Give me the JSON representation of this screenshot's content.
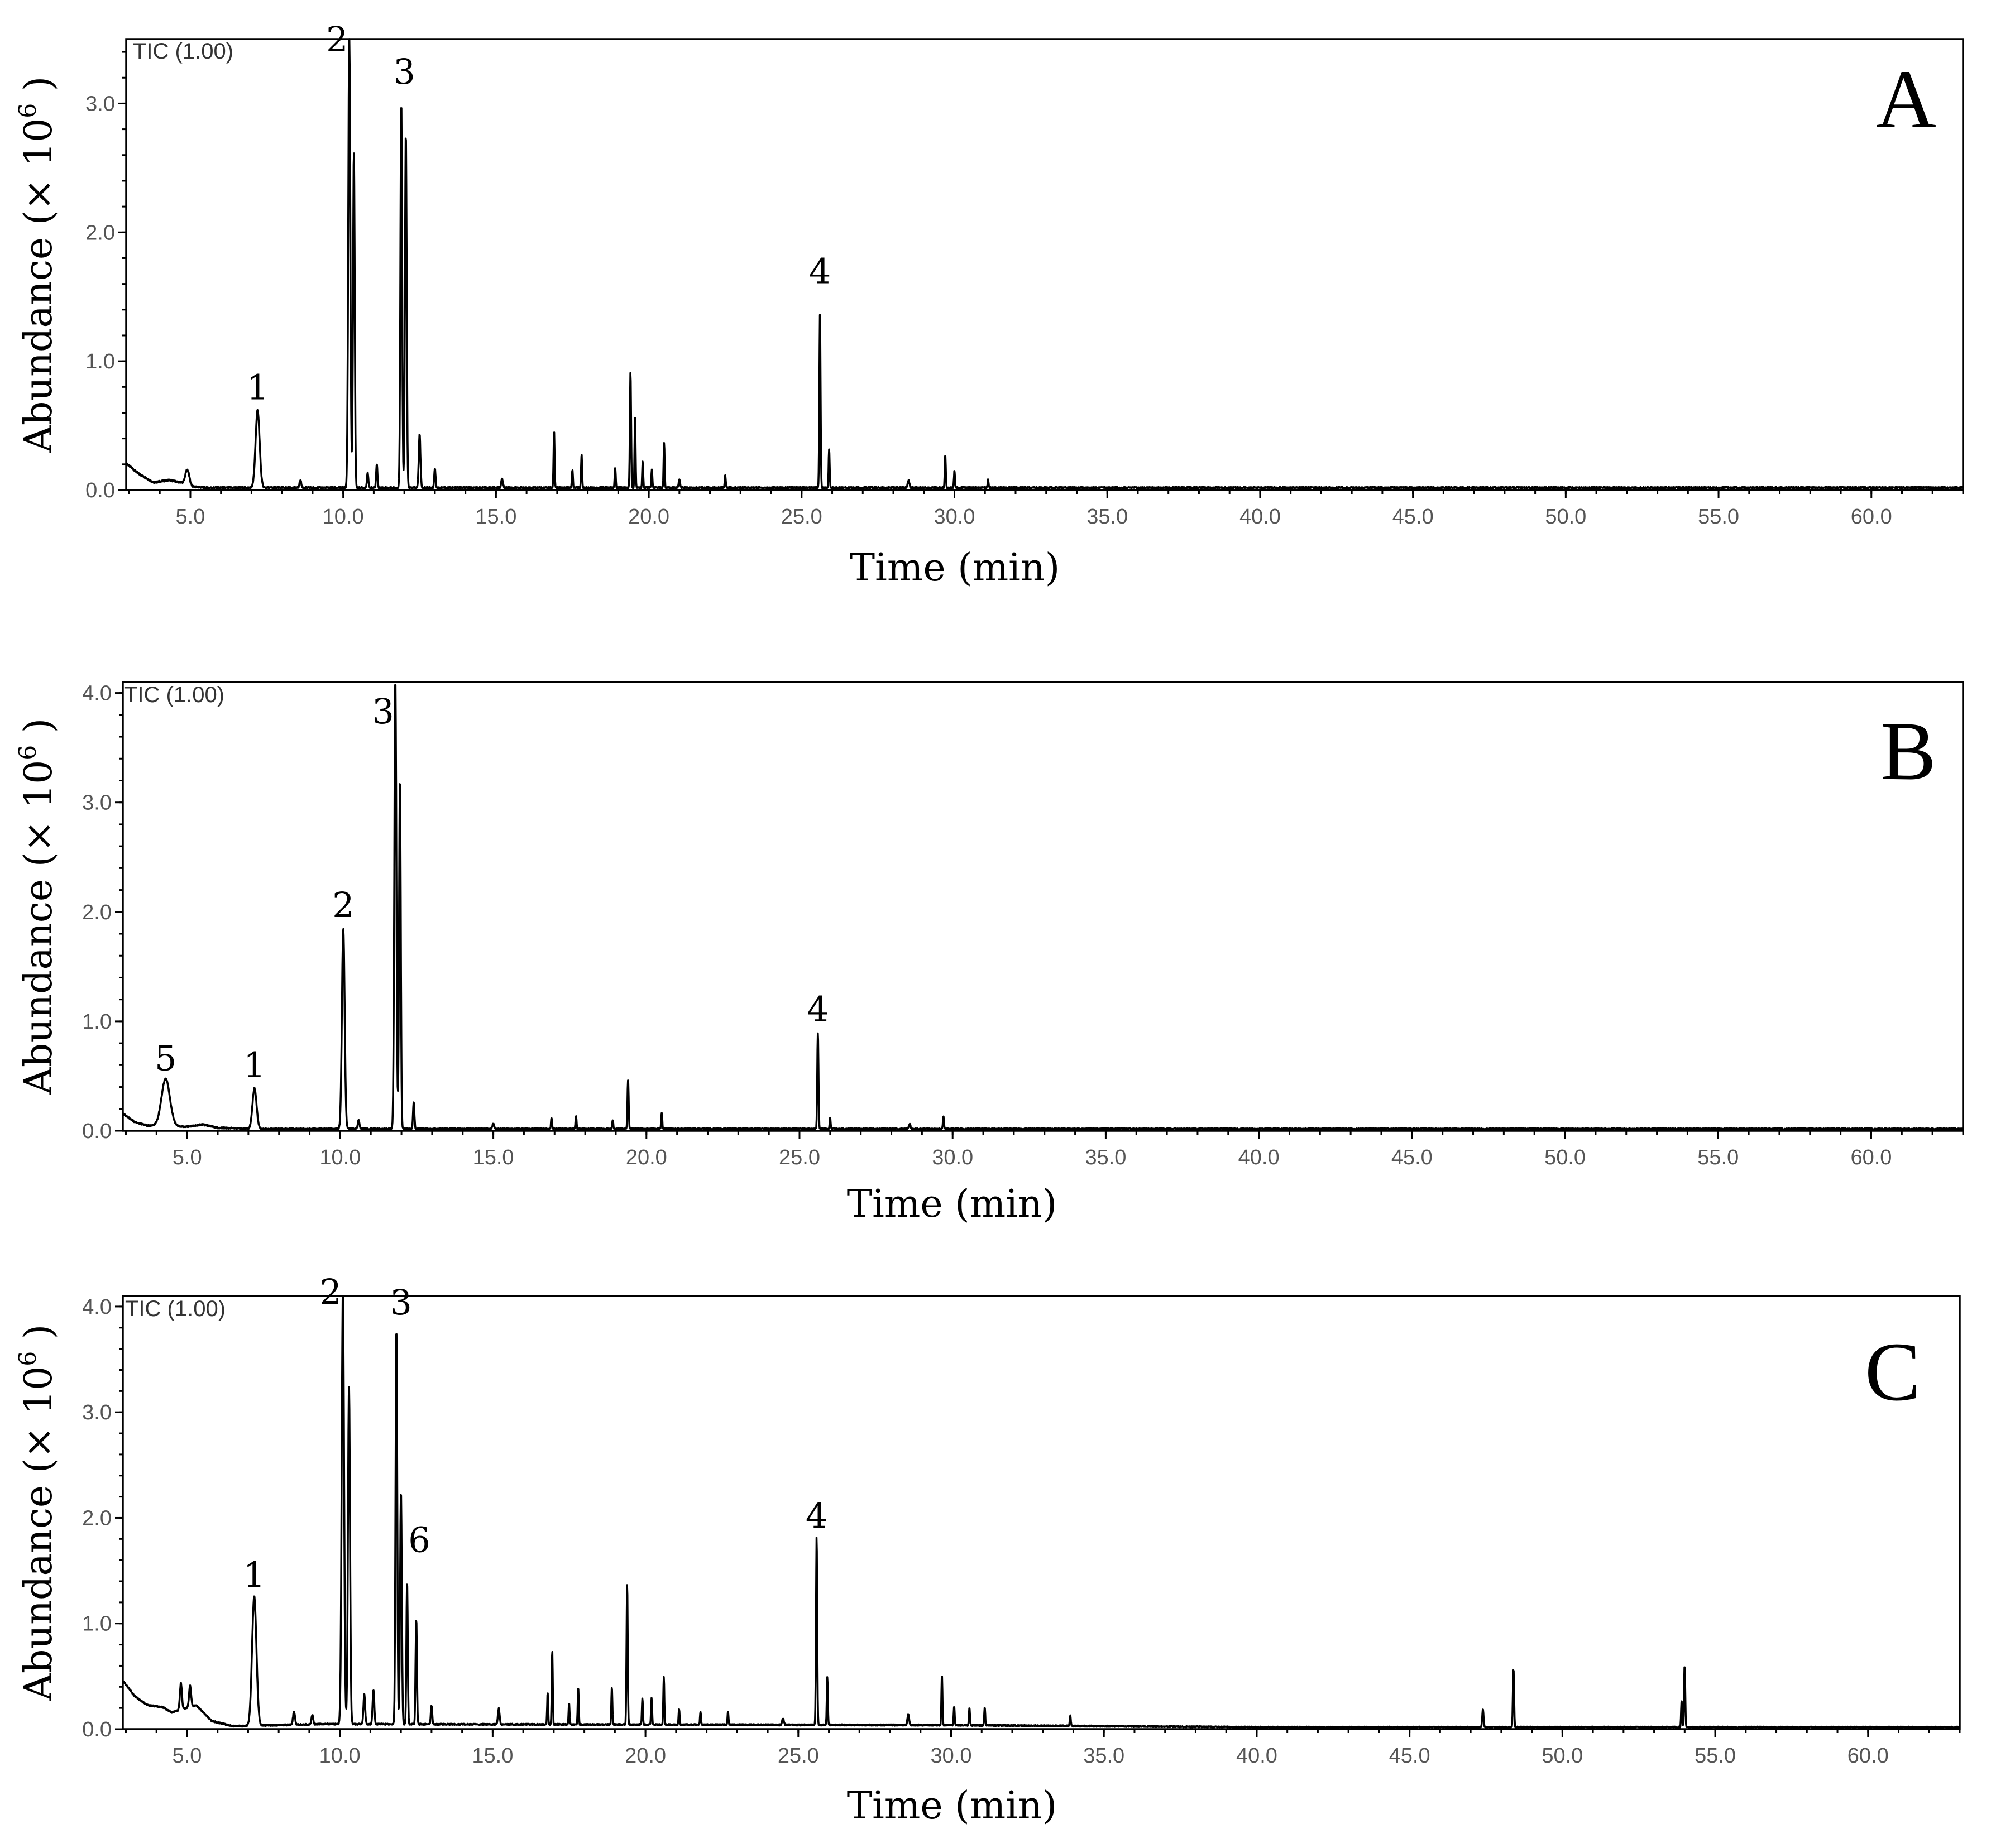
{
  "chart_data": [
    {
      "type": "line",
      "panel_label": "A",
      "trace_label": "TIC (1.00)",
      "xlabel": "Time (min)",
      "ylabel": "Abundance (× 10",
      "ylabel_sup": "6",
      "ylabel_close": " )",
      "xlim": [
        2.9,
        63.0
      ],
      "ylim": [
        0,
        3.5
      ],
      "xticks": [
        "5.0",
        "10.0",
        "15.0",
        "20.0",
        "25.0",
        "30.0",
        "35.0",
        "40.0",
        "45.0",
        "50.0",
        "55.0",
        "60.0"
      ],
      "yticks": [
        "0.0",
        "1.0",
        "2.0",
        "3.0"
      ],
      "baseline": [
        [
          2.9,
          0.2
        ],
        [
          3.3,
          0.12
        ],
        [
          3.8,
          0.05
        ],
        [
          4.3,
          0.07
        ],
        [
          4.7,
          0.05
        ],
        [
          5.0,
          0.02
        ],
        [
          5.5,
          0.01
        ],
        [
          6.5,
          0.01
        ]
      ],
      "peaks": [
        {
          "x": 4.9,
          "y": 0.12,
          "w": 0.12
        },
        {
          "x": 7.2,
          "y": 0.6,
          "w": 0.12
        },
        {
          "x": 8.6,
          "y": 0.06,
          "w": 0.05
        },
        {
          "x": 10.2,
          "y": 3.5,
          "w": 0.06
        },
        {
          "x": 10.35,
          "y": 2.6,
          "w": 0.05
        },
        {
          "x": 10.8,
          "y": 0.12,
          "w": 0.04
        },
        {
          "x": 11.1,
          "y": 0.18,
          "w": 0.04
        },
        {
          "x": 11.9,
          "y": 3.0,
          "w": 0.05
        },
        {
          "x": 12.05,
          "y": 2.75,
          "w": 0.05
        },
        {
          "x": 12.5,
          "y": 0.42,
          "w": 0.05
        },
        {
          "x": 13.0,
          "y": 0.15,
          "w": 0.04
        },
        {
          "x": 15.2,
          "y": 0.07,
          "w": 0.05
        },
        {
          "x": 16.9,
          "y": 0.44,
          "w": 0.03
        },
        {
          "x": 17.5,
          "y": 0.14,
          "w": 0.03
        },
        {
          "x": 17.8,
          "y": 0.26,
          "w": 0.03
        },
        {
          "x": 18.9,
          "y": 0.16,
          "w": 0.03
        },
        {
          "x": 19.4,
          "y": 0.9,
          "w": 0.035
        },
        {
          "x": 19.55,
          "y": 0.55,
          "w": 0.03
        },
        {
          "x": 19.8,
          "y": 0.2,
          "w": 0.03
        },
        {
          "x": 20.1,
          "y": 0.14,
          "w": 0.03
        },
        {
          "x": 20.5,
          "y": 0.35,
          "w": 0.03
        },
        {
          "x": 21.0,
          "y": 0.07,
          "w": 0.04
        },
        {
          "x": 22.5,
          "y": 0.1,
          "w": 0.03
        },
        {
          "x": 25.6,
          "y": 1.35,
          "w": 0.035
        },
        {
          "x": 25.9,
          "y": 0.3,
          "w": 0.03
        },
        {
          "x": 28.5,
          "y": 0.06,
          "w": 0.05
        },
        {
          "x": 29.7,
          "y": 0.26,
          "w": 0.03
        },
        {
          "x": 30.0,
          "y": 0.13,
          "w": 0.03
        },
        {
          "x": 31.1,
          "y": 0.06,
          "w": 0.03
        }
      ],
      "annotations": [
        {
          "text": "1",
          "x": 7.2,
          "y": 0.6
        },
        {
          "text": "2",
          "x": 9.8,
          "y": 3.3
        },
        {
          "text": "3",
          "x": 12.0,
          "y": 3.05
        },
        {
          "text": "4",
          "x": 25.6,
          "y": 1.5
        }
      ]
    },
    {
      "type": "line",
      "panel_label": "B",
      "trace_label": "TIC (1.00)",
      "xlabel": "Time (min)",
      "ylabel": "Abundance (× 10",
      "ylabel_sup": "6",
      "ylabel_close": " )",
      "xlim": [
        2.9,
        63.0
      ],
      "ylim": [
        0,
        4.1
      ],
      "xticks": [
        "5.0",
        "10.0",
        "15.0",
        "20.0",
        "25.0",
        "30.0",
        "35.0",
        "40.0",
        "45.0",
        "50.0",
        "55.0",
        "60.0"
      ],
      "yticks": [
        "0.0",
        "1.0",
        "2.0",
        "3.0",
        "4.0"
      ],
      "baseline": [
        [
          2.9,
          0.15
        ],
        [
          3.3,
          0.07
        ],
        [
          3.7,
          0.04
        ],
        [
          5.0,
          0.03
        ],
        [
          5.5,
          0.05
        ],
        [
          6.0,
          0.02
        ],
        [
          7.0,
          0.01
        ]
      ],
      "peaks": [
        {
          "x": 4.3,
          "y": 0.43,
          "w": 0.25
        },
        {
          "x": 7.2,
          "y": 0.37,
          "w": 0.12
        },
        {
          "x": 10.1,
          "y": 1.83,
          "w": 0.08
        },
        {
          "x": 10.6,
          "y": 0.08,
          "w": 0.05
        },
        {
          "x": 11.8,
          "y": 4.1,
          "w": 0.06
        },
        {
          "x": 11.95,
          "y": 3.2,
          "w": 0.05
        },
        {
          "x": 12.4,
          "y": 0.25,
          "w": 0.04
        },
        {
          "x": 15.0,
          "y": 0.05,
          "w": 0.05
        },
        {
          "x": 16.9,
          "y": 0.1,
          "w": 0.03
        },
        {
          "x": 17.7,
          "y": 0.12,
          "w": 0.03
        },
        {
          "x": 18.9,
          "y": 0.08,
          "w": 0.03
        },
        {
          "x": 19.4,
          "y": 0.45,
          "w": 0.035
        },
        {
          "x": 20.5,
          "y": 0.15,
          "w": 0.03
        },
        {
          "x": 25.6,
          "y": 0.88,
          "w": 0.035
        },
        {
          "x": 26.0,
          "y": 0.1,
          "w": 0.03
        },
        {
          "x": 28.6,
          "y": 0.04,
          "w": 0.05
        },
        {
          "x": 29.7,
          "y": 0.12,
          "w": 0.03
        }
      ],
      "annotations": [
        {
          "text": "5",
          "x": 4.3,
          "y": 0.43
        },
        {
          "text": "1",
          "x": 7.2,
          "y": 0.37
        },
        {
          "text": "2",
          "x": 10.1,
          "y": 1.83
        },
        {
          "text": "3",
          "x": 11.4,
          "y": 3.6
        },
        {
          "text": "4",
          "x": 25.6,
          "y": 0.88
        }
      ]
    },
    {
      "type": "line",
      "panel_label": "C",
      "trace_label": "TIC (1.00)",
      "xlabel": "Time (min)",
      "ylabel": "Abundance (× 10",
      "ylabel_sup": "6",
      "ylabel_close": " )",
      "xlim": [
        2.9,
        63.0
      ],
      "ylim": [
        0,
        4.1
      ],
      "xticks": [
        "5.0",
        "10.0",
        "15.0",
        "20.0",
        "25.0",
        "30.0",
        "35.0",
        "40.0",
        "45.0",
        "50.0",
        "55.0",
        "60.0"
      ],
      "yticks": [
        "0.0",
        "1.0",
        "2.0",
        "3.0",
        "4.0"
      ],
      "baseline": [
        [
          2.9,
          0.45
        ],
        [
          3.3,
          0.3
        ],
        [
          3.7,
          0.22
        ],
        [
          4.2,
          0.2
        ],
        [
          4.5,
          0.15
        ],
        [
          5.3,
          0.22
        ],
        [
          5.8,
          0.07
        ],
        [
          6.5,
          0.02
        ],
        [
          9.5,
          0.04
        ],
        [
          30.0,
          0.03
        ],
        [
          40.0,
          0.01
        ]
      ],
      "peaks": [
        {
          "x": 4.8,
          "y": 0.25,
          "w": 0.06
        },
        {
          "x": 5.1,
          "y": 0.2,
          "w": 0.06
        },
        {
          "x": 7.2,
          "y": 1.22,
          "w": 0.13
        },
        {
          "x": 8.5,
          "y": 0.12,
          "w": 0.06
        },
        {
          "x": 9.1,
          "y": 0.09,
          "w": 0.05
        },
        {
          "x": 10.1,
          "y": 4.1,
          "w": 0.07
        },
        {
          "x": 10.3,
          "y": 3.2,
          "w": 0.06
        },
        {
          "x": 10.8,
          "y": 0.28,
          "w": 0.05
        },
        {
          "x": 11.1,
          "y": 0.32,
          "w": 0.05
        },
        {
          "x": 11.85,
          "y": 3.75,
          "w": 0.05
        },
        {
          "x": 12.0,
          "y": 2.2,
          "w": 0.05
        },
        {
          "x": 12.2,
          "y": 1.35,
          "w": 0.04
        },
        {
          "x": 12.5,
          "y": 1.0,
          "w": 0.04
        },
        {
          "x": 13.0,
          "y": 0.18,
          "w": 0.04
        },
        {
          "x": 15.2,
          "y": 0.15,
          "w": 0.05
        },
        {
          "x": 16.8,
          "y": 0.3,
          "w": 0.03
        },
        {
          "x": 16.95,
          "y": 0.7,
          "w": 0.03
        },
        {
          "x": 17.5,
          "y": 0.2,
          "w": 0.03
        },
        {
          "x": 17.8,
          "y": 0.35,
          "w": 0.03
        },
        {
          "x": 18.9,
          "y": 0.35,
          "w": 0.03
        },
        {
          "x": 19.4,
          "y": 1.33,
          "w": 0.035
        },
        {
          "x": 19.9,
          "y": 0.25,
          "w": 0.03
        },
        {
          "x": 20.2,
          "y": 0.25,
          "w": 0.03
        },
        {
          "x": 20.6,
          "y": 0.45,
          "w": 0.03
        },
        {
          "x": 21.1,
          "y": 0.15,
          "w": 0.03
        },
        {
          "x": 21.8,
          "y": 0.12,
          "w": 0.03
        },
        {
          "x": 22.7,
          "y": 0.12,
          "w": 0.03
        },
        {
          "x": 24.5,
          "y": 0.06,
          "w": 0.05
        },
        {
          "x": 25.6,
          "y": 1.78,
          "w": 0.035
        },
        {
          "x": 25.95,
          "y": 0.45,
          "w": 0.03
        },
        {
          "x": 28.6,
          "y": 0.1,
          "w": 0.05
        },
        {
          "x": 29.7,
          "y": 0.48,
          "w": 0.03
        },
        {
          "x": 30.1,
          "y": 0.18,
          "w": 0.03
        },
        {
          "x": 30.6,
          "y": 0.17,
          "w": 0.03
        },
        {
          "x": 31.1,
          "y": 0.17,
          "w": 0.03
        },
        {
          "x": 33.9,
          "y": 0.1,
          "w": 0.03
        },
        {
          "x": 47.4,
          "y": 0.17,
          "w": 0.04
        },
        {
          "x": 48.4,
          "y": 0.55,
          "w": 0.035
        },
        {
          "x": 53.9,
          "y": 0.25,
          "w": 0.03
        },
        {
          "x": 54.0,
          "y": 0.58,
          "w": 0.035
        }
      ],
      "annotations": [
        {
          "text": "1",
          "x": 7.2,
          "y": 1.22
        },
        {
          "text": "2",
          "x": 9.7,
          "y": 3.9
        },
        {
          "text": "3",
          "x": 12.0,
          "y": 3.8
        },
        {
          "text": "6",
          "x": 12.6,
          "y": 1.55
        },
        {
          "text": "4",
          "x": 25.6,
          "y": 1.78
        }
      ]
    }
  ]
}
